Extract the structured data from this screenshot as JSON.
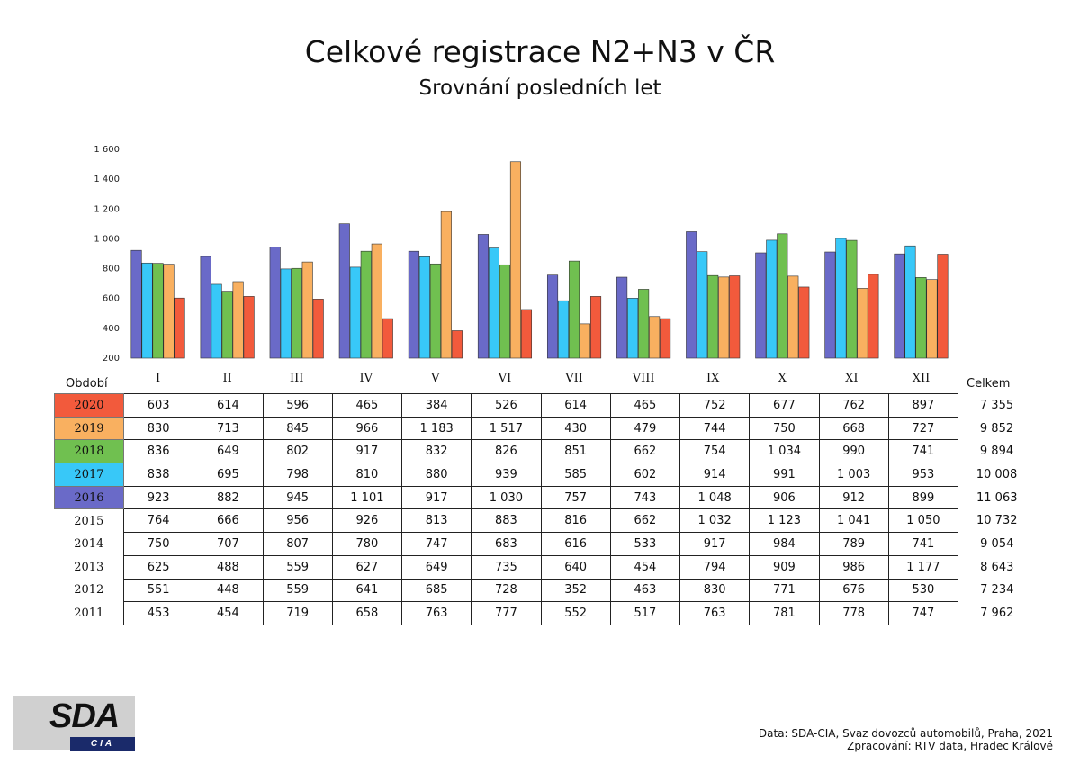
{
  "title": "Celkové registrace N2+N3 v ČR",
  "subtitle": "Srovnání posledních let",
  "period_label": "Období",
  "total_label": "Celkem",
  "footer": {
    "source": "Data: SDA-CIA, Svaz dovozců automobilů, Praha, 2021",
    "processed": "Zpracování: RTV data, Hradec Králové"
  },
  "logo": {
    "main": "SDA",
    "sub": "CIA"
  },
  "colors": {
    "2020": "#f25a3c",
    "2019": "#f9b060",
    "2018": "#70c050",
    "2017": "#38c8f8",
    "2016": "#6a6ac8"
  },
  "chart_data": {
    "type": "bar",
    "categories": [
      "I",
      "II",
      "III",
      "IV",
      "V",
      "VI",
      "VII",
      "VIII",
      "IX",
      "X",
      "XI",
      "XII"
    ],
    "ylim": [
      200,
      1600
    ],
    "yticks": [
      "200",
      "400",
      "600",
      "800",
      "1 000",
      "1 200",
      "1 400",
      "1 600"
    ],
    "grid": false,
    "series": [
      {
        "name": "2016",
        "values": [
          923,
          882,
          945,
          1101,
          917,
          1030,
          757,
          743,
          1048,
          906,
          912,
          899
        ]
      },
      {
        "name": "2017",
        "values": [
          838,
          695,
          798,
          810,
          880,
          939,
          585,
          602,
          914,
          991,
          1003,
          953
        ]
      },
      {
        "name": "2018",
        "values": [
          836,
          649,
          802,
          917,
          832,
          826,
          851,
          662,
          754,
          1034,
          990,
          741
        ]
      },
      {
        "name": "2019",
        "values": [
          830,
          713,
          845,
          966,
          1183,
          1517,
          430,
          479,
          744,
          750,
          668,
          727
        ]
      },
      {
        "name": "2020",
        "values": [
          603,
          614,
          596,
          465,
          384,
          526,
          614,
          465,
          752,
          677,
          762,
          897
        ]
      }
    ]
  },
  "table": {
    "rows": [
      {
        "year": "2020",
        "colored": true,
        "values": [
          "603",
          "614",
          "596",
          "465",
          "384",
          "526",
          "614",
          "465",
          "752",
          "677",
          "762",
          "897"
        ],
        "total": "7 355"
      },
      {
        "year": "2019",
        "colored": true,
        "values": [
          "830",
          "713",
          "845",
          "966",
          "1 183",
          "1 517",
          "430",
          "479",
          "744",
          "750",
          "668",
          "727"
        ],
        "total": "9 852"
      },
      {
        "year": "2018",
        "colored": true,
        "values": [
          "836",
          "649",
          "802",
          "917",
          "832",
          "826",
          "851",
          "662",
          "754",
          "1 034",
          "990",
          "741"
        ],
        "total": "9 894"
      },
      {
        "year": "2017",
        "colored": true,
        "values": [
          "838",
          "695",
          "798",
          "810",
          "880",
          "939",
          "585",
          "602",
          "914",
          "991",
          "1 003",
          "953"
        ],
        "total": "10 008"
      },
      {
        "year": "2016",
        "colored": true,
        "values": [
          "923",
          "882",
          "945",
          "1 101",
          "917",
          "1 030",
          "757",
          "743",
          "1 048",
          "906",
          "912",
          "899"
        ],
        "total": "11 063"
      },
      {
        "year": "2015",
        "colored": false,
        "values": [
          "764",
          "666",
          "956",
          "926",
          "813",
          "883",
          "816",
          "662",
          "1 032",
          "1 123",
          "1 041",
          "1 050"
        ],
        "total": "10 732"
      },
      {
        "year": "2014",
        "colored": false,
        "values": [
          "750",
          "707",
          "807",
          "780",
          "747",
          "683",
          "616",
          "533",
          "917",
          "984",
          "789",
          "741"
        ],
        "total": "9 054"
      },
      {
        "year": "2013",
        "colored": false,
        "values": [
          "625",
          "488",
          "559",
          "627",
          "649",
          "735",
          "640",
          "454",
          "794",
          "909",
          "986",
          "1 177"
        ],
        "total": "8 643"
      },
      {
        "year": "2012",
        "colored": false,
        "values": [
          "551",
          "448",
          "559",
          "641",
          "685",
          "728",
          "352",
          "463",
          "830",
          "771",
          "676",
          "530"
        ],
        "total": "7 234"
      },
      {
        "year": "2011",
        "colored": false,
        "values": [
          "453",
          "454",
          "719",
          "658",
          "763",
          "777",
          "552",
          "517",
          "763",
          "781",
          "778",
          "747"
        ],
        "total": "7 962"
      }
    ]
  }
}
